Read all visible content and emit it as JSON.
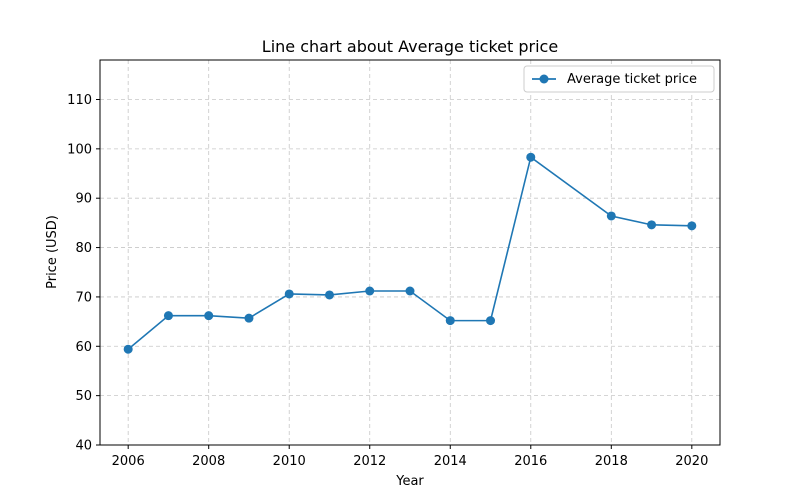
{
  "chart_data": {
    "type": "line",
    "title": "Line chart about Average ticket price",
    "xlabel": "Year",
    "ylabel": "Price (USD)",
    "xlim": [
      2005.3,
      2020.7
    ],
    "ylim": [
      40,
      118
    ],
    "xticks": [
      2006,
      2008,
      2010,
      2012,
      2014,
      2016,
      2018,
      2020
    ],
    "yticks": [
      40,
      50,
      60,
      70,
      80,
      90,
      100,
      110
    ],
    "grid": true,
    "legend_position": "top-right",
    "series": [
      {
        "name": "Average ticket price",
        "color": "#1f77b4",
        "x": [
          2006,
          2007,
          2008,
          2009,
          2010,
          2011,
          2012,
          2013,
          2014,
          2015,
          2016,
          2018,
          2019,
          2020
        ],
        "y": [
          59.4,
          66.2,
          66.2,
          65.7,
          70.6,
          70.4,
          71.2,
          71.2,
          65.2,
          65.2,
          98.3,
          86.4,
          84.6,
          84.4
        ]
      }
    ]
  }
}
